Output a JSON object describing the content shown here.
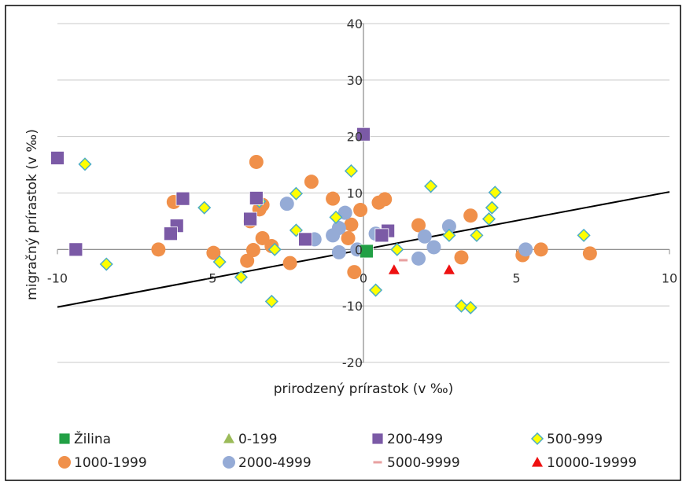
{
  "chart_data": {
    "type": "scatter",
    "xlabel": "prirodzený prírastok (v ‰)",
    "ylabel": "migračný prírastok (v ‰)",
    "xlim": [
      -10,
      10
    ],
    "ylim": [
      -20,
      40
    ],
    "x_ticks": [
      "-10",
      "-5",
      "0",
      "5",
      "10"
    ],
    "y_ticks": [
      "-20",
      "-10",
      "0",
      "10",
      "20",
      "30",
      "40"
    ],
    "x_tick_values": [
      -10,
      -5,
      0,
      5,
      10
    ],
    "y_tick_values": [
      -20,
      -10,
      0,
      10,
      20,
      30,
      40
    ],
    "grid": "horizontal",
    "legend_position": "bottom",
    "trendline": {
      "type": "linear",
      "x": [
        -10,
        10
      ],
      "y": [
        -10.2,
        10.2
      ],
      "color": "#000000"
    },
    "series": [
      {
        "name": "Žilina",
        "marker": "square",
        "color": "#22a045",
        "points": [
          [
            0.1,
            -0.3
          ]
        ]
      },
      {
        "name": "0-199",
        "marker": "triangle",
        "color": "#9bbb59",
        "points": []
      },
      {
        "name": "200-499",
        "marker": "square",
        "color": "#7b5aa6",
        "points": [
          [
            -10,
            16.2
          ],
          [
            -9.4,
            0
          ],
          [
            -5.9,
            9
          ],
          [
            -6.1,
            4.2
          ],
          [
            -6.3,
            2.8
          ],
          [
            -3.5,
            9.1
          ],
          [
            -3.7,
            5.4
          ],
          [
            -1.9,
            1.8
          ],
          [
            0,
            20.4
          ],
          [
            0.8,
            3.3
          ],
          [
            0.6,
            2.5
          ]
        ]
      },
      {
        "name": "500-999",
        "marker": "diamond",
        "color": "#ffff00",
        "stroke": "#4bacc6",
        "points": [
          [
            -9.1,
            15.1
          ],
          [
            -8.4,
            -2.6
          ],
          [
            -5.2,
            7.4
          ],
          [
            -4.7,
            -2.2
          ],
          [
            -4.0,
            -4.9
          ],
          [
            -3.0,
            -9.2
          ],
          [
            -3.4,
            8.5
          ],
          [
            -2.9,
            0
          ],
          [
            -2.2,
            3.4
          ],
          [
            -2.2,
            9.9
          ],
          [
            -0.4,
            13.9
          ],
          [
            -0.9,
            5.7
          ],
          [
            0.4,
            -7.2
          ],
          [
            1.1,
            0
          ],
          [
            2.2,
            11.2
          ],
          [
            2.8,
            2.5
          ],
          [
            3.2,
            -10.0
          ],
          [
            3.5,
            -10.3
          ],
          [
            3.7,
            2.5
          ],
          [
            4.1,
            5.4
          ],
          [
            4.2,
            7.4
          ],
          [
            4.3,
            10.1
          ],
          [
            7.2,
            2.5
          ]
        ]
      },
      {
        "name": "1000-1999",
        "marker": "circle",
        "color": "#f0904a",
        "points": [
          [
            -6.7,
            0
          ],
          [
            -6.2,
            8.4
          ],
          [
            -4.9,
            -0.6
          ],
          [
            -3.8,
            -2.0
          ],
          [
            -3.7,
            5.0
          ],
          [
            -3.6,
            -0.1
          ],
          [
            -3.4,
            7.1
          ],
          [
            -3.3,
            7.9
          ],
          [
            -3.3,
            2.0
          ],
          [
            -3.0,
            0.6
          ],
          [
            -3.5,
            15.5
          ],
          [
            -2.4,
            -2.4
          ],
          [
            -1.7,
            12.0
          ],
          [
            -1.0,
            9.0
          ],
          [
            -0.5,
            2.0
          ],
          [
            -0.4,
            4.4
          ],
          [
            -0.3,
            -4.0
          ],
          [
            -0.1,
            7.0
          ],
          [
            0.5,
            8.3
          ],
          [
            0.7,
            8.9
          ],
          [
            1.8,
            4.3
          ],
          [
            3.2,
            -1.4
          ],
          [
            3.5,
            6.0
          ],
          [
            5.2,
            -1.0
          ],
          [
            5.8,
            0.0
          ],
          [
            7.4,
            -0.7
          ]
        ]
      },
      {
        "name": "2000-4999",
        "marker": "circle",
        "color": "#95abd6",
        "points": [
          [
            -2.5,
            8.1
          ],
          [
            -1.6,
            1.8
          ],
          [
            -1.0,
            2.5
          ],
          [
            -0.8,
            3.8
          ],
          [
            -0.6,
            6.5
          ],
          [
            -0.8,
            -0.5
          ],
          [
            -0.2,
            0
          ],
          [
            0.4,
            2.8
          ],
          [
            2.0,
            2.3
          ],
          [
            1.8,
            -1.6
          ],
          [
            2.3,
            0.4
          ],
          [
            2.8,
            4.1
          ],
          [
            5.3,
            0
          ]
        ]
      },
      {
        "name": "5000-9999",
        "marker": "dash",
        "color": "#e8a0a0",
        "points": [
          [
            1.3,
            -1.9
          ]
        ]
      },
      {
        "name": "10000-19999",
        "marker": "triangle",
        "color": "#ee1111",
        "points": [
          [
            1.0,
            -3.6
          ],
          [
            2.8,
            -3.6
          ]
        ]
      }
    ]
  }
}
